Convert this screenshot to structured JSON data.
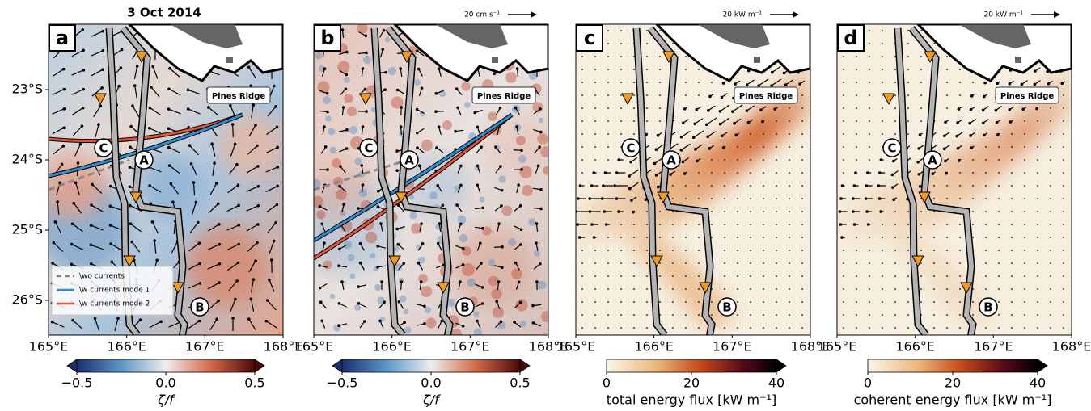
{
  "date": "3 Oct 2014",
  "panels": [
    {
      "label": "a",
      "sites": [
        "C",
        "A",
        "B"
      ],
      "ridge": "Pines Ridge",
      "xticks": [
        "165°E",
        "166°E",
        "167°E",
        "168°E"
      ],
      "yticks": [
        "23°S",
        "24°S",
        "25°S",
        "26°S"
      ],
      "legend": [
        "\\wo currents",
        "\\w currents mode 1",
        "\\w currents mode 2"
      ],
      "colorbar": {
        "ticks": [
          "−0.5",
          "0.0",
          "0.5"
        ],
        "label": "ζ/f"
      }
    },
    {
      "label": "b",
      "scale": "20 cm s⁻¹",
      "sites": [
        "C",
        "A",
        "B"
      ],
      "ridge": "Pines Ridge",
      "xticks": [
        "165°E",
        "166°E",
        "167°E",
        "168°E"
      ],
      "colorbar": {
        "ticks": [
          "−0.5",
          "0.0",
          "0.5"
        ],
        "label": "ζ/f"
      }
    },
    {
      "label": "c",
      "scale": "20 kW m⁻¹",
      "sites": [
        "C",
        "A",
        "B"
      ],
      "ridge": "Pines Ridge",
      "xticks": [
        "165°E",
        "166°E",
        "167°E",
        "168°E"
      ],
      "colorbar": {
        "ticks": [
          "0",
          "20",
          "40"
        ],
        "label": "total energy flux [kW m⁻¹]"
      }
    },
    {
      "label": "d",
      "scale": "20 kW m⁻¹",
      "sites": [
        "C",
        "A",
        "B"
      ],
      "ridge": "Pines Ridge",
      "xticks": [
        "165°E",
        "166°E",
        "167°E",
        "168°E"
      ],
      "colorbar": {
        "ticks": [
          "0",
          "20",
          "40"
        ],
        "label": "coherent energy flux [kW m⁻¹]"
      }
    }
  ]
}
